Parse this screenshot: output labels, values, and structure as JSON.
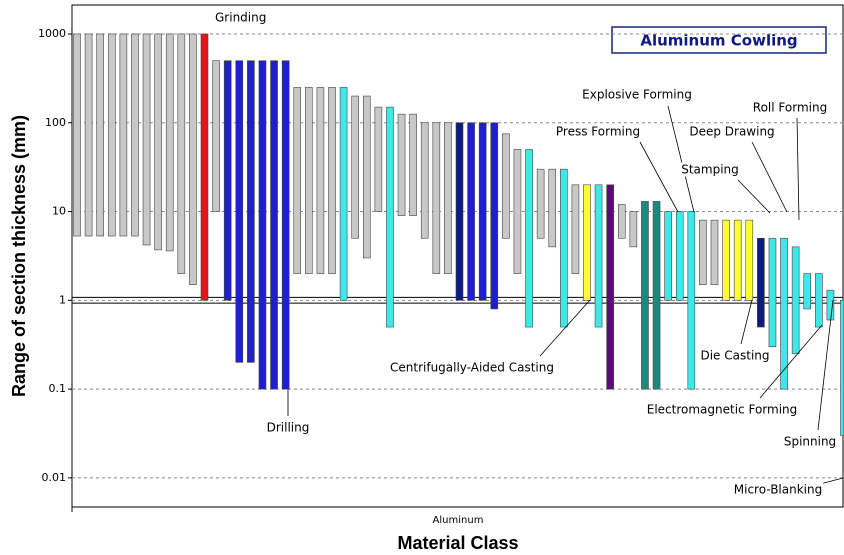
{
  "chart_data": {
    "type": "floating_bar",
    "title": "Aluminum Cowling",
    "y_label": "Range of section thickness (mm)",
    "x_label": "Material Class",
    "categories": [
      "Aluminum"
    ],
    "yscale": "log",
    "ylim": [
      0.0047,
      2120
    ],
    "yticks": [
      1000,
      100,
      10,
      1,
      0.1,
      0.01
    ],
    "grid": true,
    "reference_lines": [
      1.08,
      0.93
    ],
    "highs": [
      1000,
      1000,
      1000,
      1000,
      1000,
      1000,
      1000,
      1000,
      1000,
      1000,
      1000,
      1000,
      500,
      500,
      500,
      500,
      500,
      500,
      500,
      250,
      250,
      250,
      250,
      250,
      200,
      200,
      150,
      150,
      125,
      125,
      100,
      100,
      100,
      100,
      100,
      100,
      100,
      75,
      50,
      50,
      30,
      30,
      30,
      20,
      20,
      20,
      20,
      12,
      10,
      13,
      13,
      10,
      10,
      10,
      8,
      8,
      8,
      8,
      8,
      5,
      5,
      5,
      4,
      2,
      2,
      1.3,
      1
    ],
    "lows": [
      5.3,
      5.3,
      5.3,
      5.3,
      5.3,
      5.3,
      4.2,
      3.7,
      3.6,
      2,
      1.5,
      1,
      10,
      1,
      0.2,
      0.2,
      0.1,
      0.1,
      0.1,
      2,
      2,
      2,
      2,
      1,
      5,
      3,
      10,
      0.5,
      9,
      9,
      5,
      2,
      2,
      1,
      1,
      1,
      0.8,
      5,
      2,
      0.5,
      5,
      4,
      0.5,
      2,
      1,
      0.5,
      0.1,
      5,
      4,
      0.1,
      0.1,
      1,
      1,
      0.1,
      1.5,
      1.5,
      1,
      1,
      1,
      0.5,
      0.3,
      0.1,
      0.25,
      0.8,
      0.5,
      0.6,
      0.03
    ],
    "colors": [
      "#c8c8c8",
      "#c8c8c8",
      "#c8c8c8",
      "#c8c8c8",
      "#c8c8c8",
      "#c8c8c8",
      "#c8c8c8",
      "#c8c8c8",
      "#c8c8c8",
      "#c8c8c8",
      "#c8c8c8",
      "#e8141c",
      "#c8c8c8",
      "#1f1fd0",
      "#1f1fd0",
      "#1f1fd0",
      "#1f1fd0",
      "#1f1fd0",
      "#1f1fd0",
      "#c8c8c8",
      "#c8c8c8",
      "#c8c8c8",
      "#c8c8c8",
      "#3fe8e8",
      "#c8c8c8",
      "#c8c8c8",
      "#c8c8c8",
      "#3fe8e8",
      "#c8c8c8",
      "#c8c8c8",
      "#c8c8c8",
      "#c8c8c8",
      "#c8c8c8",
      "#0d1a80",
      "#1f1fd0",
      "#1f1fd0",
      "#1f1fd0",
      "#c8c8c8",
      "#c8c8c8",
      "#3fe8e8",
      "#c8c8c8",
      "#c8c8c8",
      "#3fe8e8",
      "#c8c8c8",
      "#ffff33",
      "#3fe8e8",
      "#5a0a7a",
      "#c8c8c8",
      "#c8c8c8",
      "#1a8a80",
      "#1a8a80",
      "#3fe8e8",
      "#3fe8e8",
      "#3fe8e8",
      "#c8c8c8",
      "#c8c8c8",
      "#ffff33",
      "#ffff33",
      "#ffff33",
      "#0d1a80",
      "#3fe8e8",
      "#3fe8e8",
      "#3fe8e8",
      "#3fe8e8",
      "#3fe8e8",
      "#3fe8e8",
      "#3fe8e8"
    ],
    "annotations": [
      "Grinding",
      "Drilling",
      "Centrifugally-Aided Casting",
      "Press Forming",
      "Explosive Forming",
      "Deep Drawing",
      "Roll Forming",
      "Stamping",
      "Die Casting",
      "Electromagnetic Forming",
      "Spinning",
      "Micro-Blanking"
    ]
  }
}
